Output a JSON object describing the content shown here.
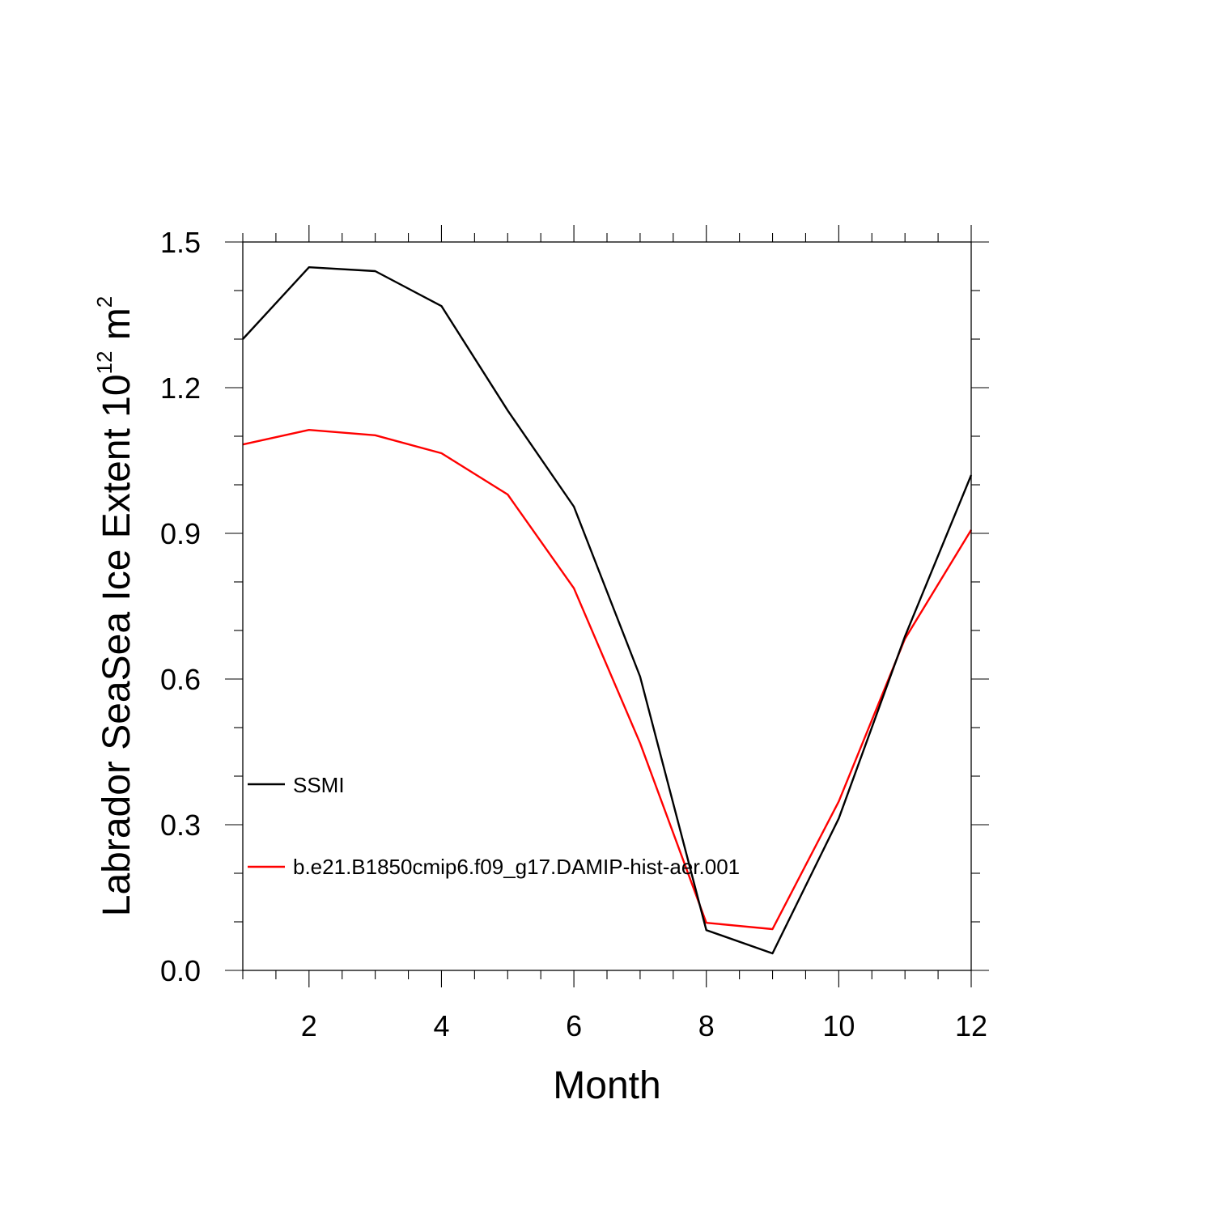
{
  "chart_data": {
    "type": "line",
    "title": "",
    "xlabel": "Month",
    "ylabel_main": "Labrador SeaSea Ice Extent 10",
    "ylabel_exponent": "12",
    "ylabel_unit": "m",
    "ylabel_unit_exponent": "2",
    "xlim": [
      1,
      12
    ],
    "ylim": [
      0,
      1.5
    ],
    "xticks": [
      2,
      4,
      6,
      8,
      10,
      12
    ],
    "xtick_labels": [
      "2",
      "4",
      "6",
      "8",
      "10",
      "12"
    ],
    "yticks": [
      0,
      0.3,
      0.6,
      0.9,
      1.2,
      1.5
    ],
    "ytick_labels": [
      "0.0",
      "0.3",
      "0.6",
      "0.9",
      "1.2",
      "1.5"
    ],
    "x": [
      1,
      2,
      3,
      4,
      5,
      6,
      7,
      8,
      9,
      10,
      11,
      12
    ],
    "series": [
      {
        "name": "SSMI",
        "color": "#000000",
        "values": [
          1.3,
          1.448,
          1.44,
          1.368,
          1.153,
          0.955,
          0.605,
          0.083,
          0.035,
          0.313,
          0.688,
          1.02
        ]
      },
      {
        "name": "b.e21.B1850cmip6.f09_g17.DAMIP-hist-aer.001",
        "color": "#ff0000",
        "values": [
          1.083,
          1.113,
          1.102,
          1.065,
          0.98,
          0.787,
          0.468,
          0.098,
          0.085,
          0.348,
          0.683,
          0.907
        ]
      }
    ],
    "legend_position": "lower-left inside"
  }
}
